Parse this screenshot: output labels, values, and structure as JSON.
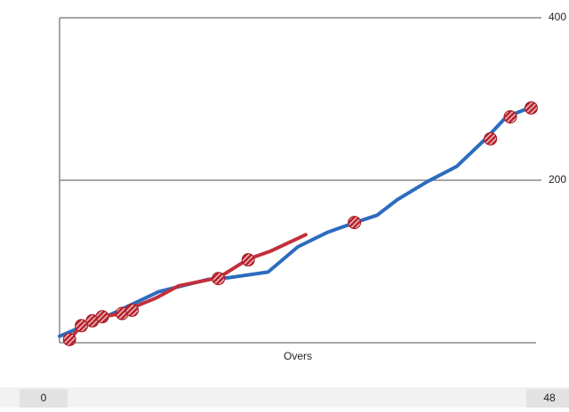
{
  "chart_data": {
    "type": "line",
    "x_label": "Overs",
    "xlim": [
      0,
      48
    ],
    "ylim": [
      0,
      400
    ],
    "yticks": [
      200,
      400
    ],
    "grid": true,
    "series": [
      {
        "color": "#2c6cbf",
        "x": [
          0,
          5,
          10,
          15,
          17,
          21,
          24,
          27,
          30,
          32,
          34,
          37,
          40,
          43,
          45,
          47.5
        ],
        "values": [
          8,
          34,
          63,
          78,
          80,
          87,
          118,
          136,
          149,
          157,
          176,
          198,
          217,
          252,
          278,
          290
        ],
        "wickets": {
          "x": [
            29.7,
            43.4,
            45.4,
            47.5
          ],
          "values": [
            148,
            251,
            278,
            289
          ]
        }
      },
      {
        "color": "#c2303a",
        "x": [
          1,
          2.2,
          3.3,
          4.3,
          6.3,
          7.3,
          9.7,
          12,
          16,
          19,
          21.3,
          24.8
        ],
        "values": [
          4,
          21,
          27,
          32,
          36,
          43,
          55,
          70,
          80,
          103,
          113,
          133
        ],
        "wickets": {
          "x": [
            1,
            2.2,
            3.3,
            4.3,
            6.3,
            7.3,
            16,
            19
          ],
          "values": [
            4,
            21,
            27,
            32,
            36,
            40,
            79,
            102
          ]
        }
      }
    ],
    "slider": {
      "start": 0,
      "end": 48
    }
  }
}
